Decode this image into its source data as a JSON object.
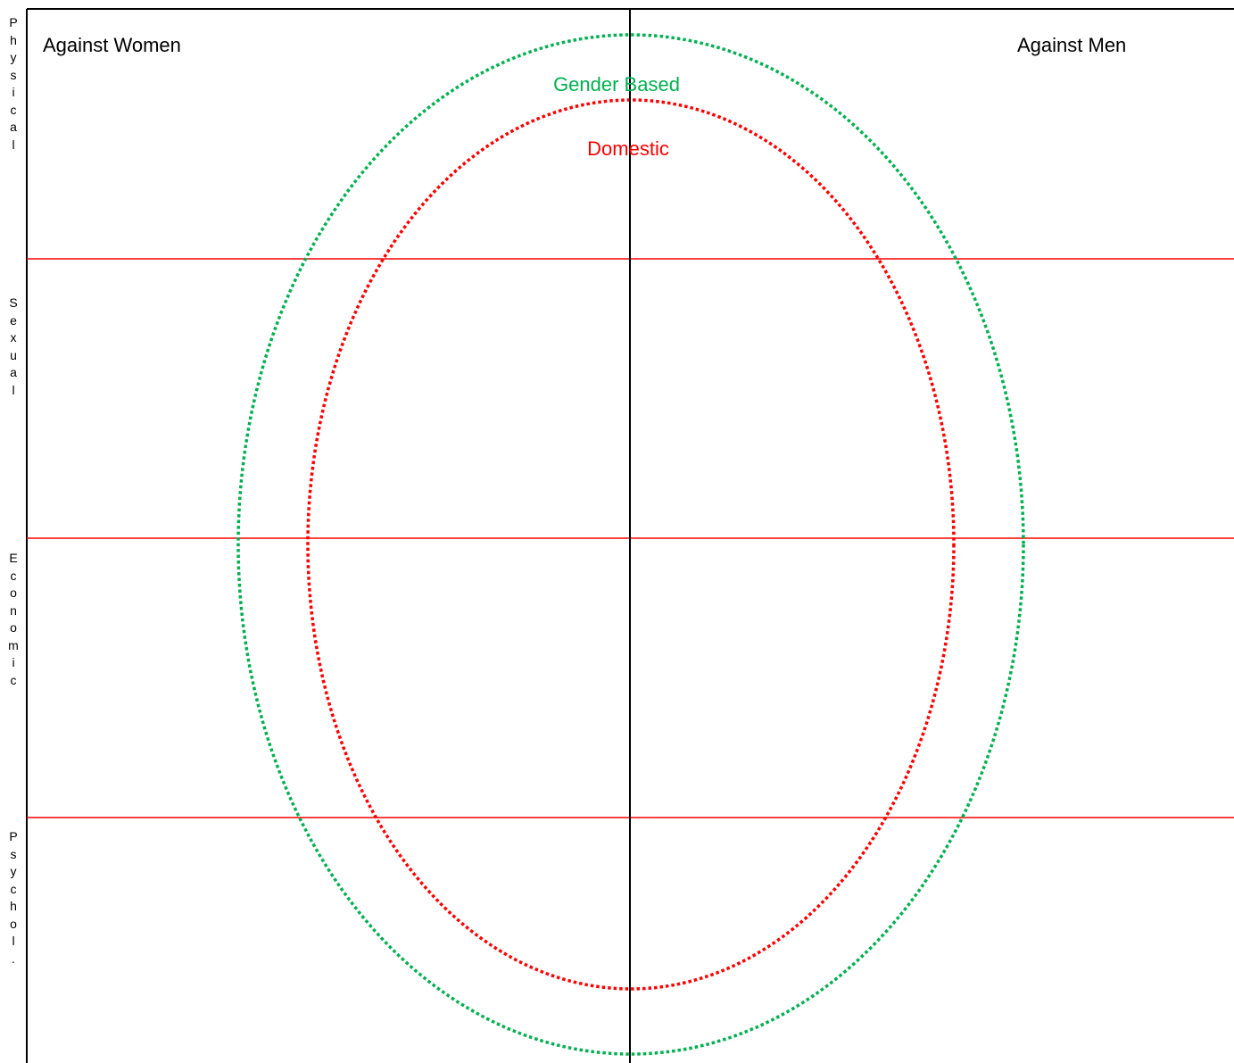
{
  "header": {
    "left": "Against Women",
    "right": "Against Men"
  },
  "rows": [
    {
      "label": "Physical"
    },
    {
      "label": "Sexual"
    },
    {
      "label": "Economic"
    },
    {
      "label": "Psychol."
    }
  ],
  "rings": [
    {
      "label": "Gender Based",
      "color": "#00b050"
    },
    {
      "label": "Domestic",
      "color": "#ff0000"
    }
  ],
  "colors": {
    "frame": "#000000",
    "row_divider": "#ff0000"
  }
}
